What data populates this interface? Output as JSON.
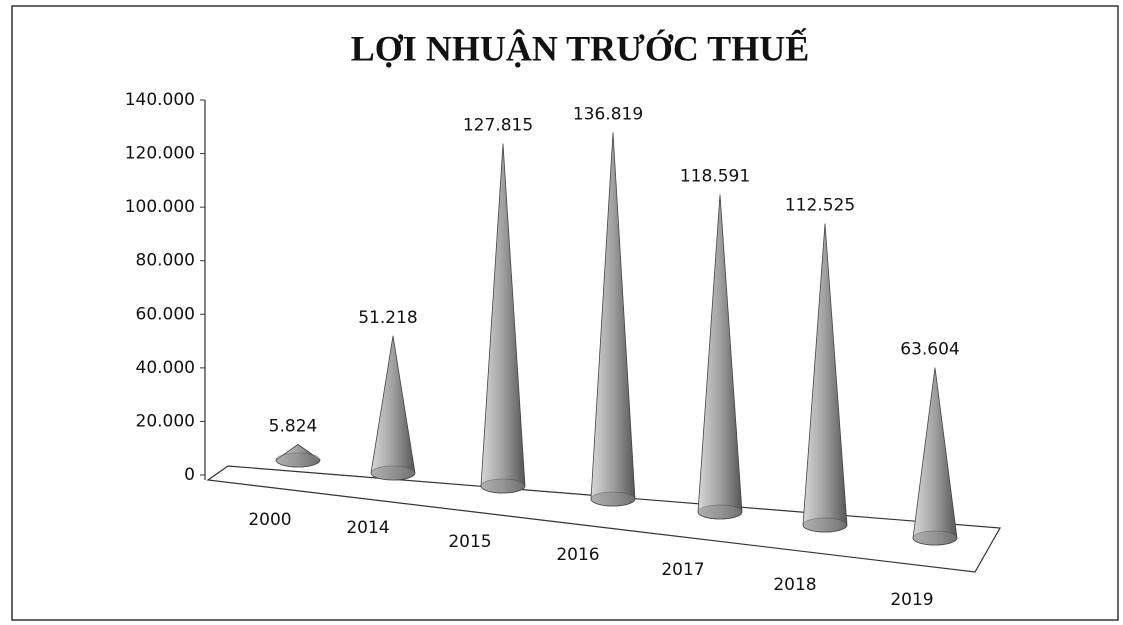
{
  "chart_data": {
    "type": "cone3d",
    "title": "LỢI NHUẬN TRƯỚC THUẾ",
    "categories": [
      "2000",
      "2014",
      "2015",
      "2016",
      "2017",
      "2018",
      "2019"
    ],
    "values": [
      5824,
      51218,
      127815,
      136819,
      118591,
      112525,
      63604
    ],
    "value_labels": [
      "5.824",
      "51.218",
      "127.815",
      "136.819",
      "118.591",
      "112.525",
      "63.604"
    ],
    "color": "#8a8a8a",
    "ylim": [
      0,
      140000
    ],
    "yticks": [
      0,
      {
        "value": 20000,
        "label": "20.000"
      },
      {
        "value": 40000,
        "label": "40.000"
      },
      {
        "value": 60000,
        "label": "60.000"
      },
      {
        "value": 80000,
        "label": "80.000"
      },
      {
        "value": 100000,
        "label": "100.000"
      },
      {
        "value": 120000,
        "label": "120.000"
      },
      {
        "value": 140000,
        "label": "140.000"
      }
    ]
  }
}
